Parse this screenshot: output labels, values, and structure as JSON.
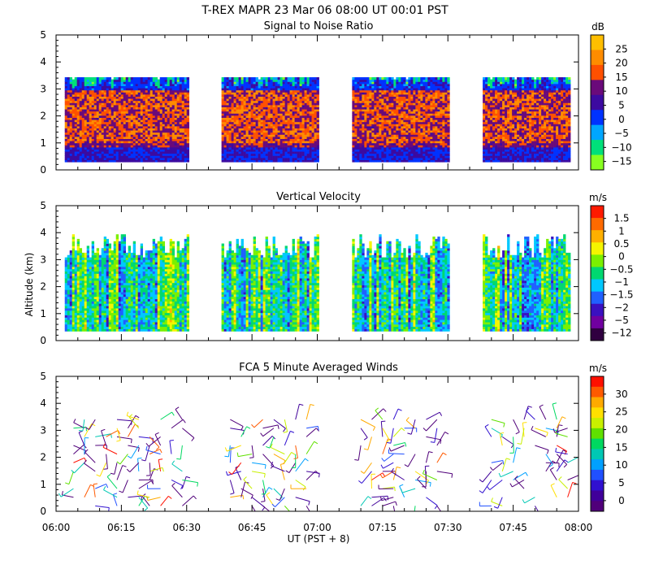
{
  "header": {
    "title": "T-REX   MAPR 23 Mar 06   08:00 UT   00:01   PST"
  },
  "y_axis_label": "Altitude (km)",
  "x_axis_label": "UT  (PST + 8)",
  "x_ticks": [
    "06:00",
    "06:15",
    "06:30",
    "06:45",
    "07:00",
    "07:15",
    "07:30",
    "07:45",
    "08:00"
  ],
  "y_ticks": [
    "0",
    "1",
    "2",
    "3",
    "4",
    "5"
  ],
  "gap_periods_ut": [
    [
      "06:30",
      "06:38"
    ],
    [
      "07:00",
      "07:08"
    ],
    [
      "07:30",
      "07:38"
    ]
  ],
  "chart_data": [
    {
      "type": "heatmap",
      "title": "Signal to Noise Ratio",
      "ylabel": "Altitude (km)",
      "ylim": [
        0,
        5
      ],
      "xlim": [
        "06:00",
        "08:00"
      ],
      "colorbar": {
        "unit": "dB",
        "labels": [
          "25",
          "20",
          "15",
          "10",
          "5",
          "0",
          "−5",
          "−10",
          "−15"
        ],
        "colors": [
          "#FFBE00",
          "#FF8C00",
          "#FF5000",
          "#6A0A7A",
          "#3C0AA0",
          "#0032FF",
          "#00A6FF",
          "#00E07A",
          "#88FF20"
        ]
      }
    },
    {
      "type": "heatmap",
      "title": "Vertical Velocity",
      "ylabel": "Altitude (km)",
      "ylim": [
        0,
        5
      ],
      "xlim": [
        "06:00",
        "08:00"
      ],
      "colorbar": {
        "unit": "m/s",
        "labels": [
          "1.5",
          "1",
          "0.5",
          "0",
          "−0.5",
          "−1",
          "−1.5",
          "−2",
          "−5",
          "−12"
        ],
        "colors": [
          "#FF1A00",
          "#FF6A00",
          "#FFB000",
          "#F5F500",
          "#7AF000",
          "#00D870",
          "#00C8FF",
          "#2060FF",
          "#3A10C0",
          "#7000A0",
          "#300040"
        ]
      }
    },
    {
      "type": "scatter",
      "title": "FCA 5 Minute Averaged Winds",
      "ylabel": "Altitude (km)",
      "ylim": [
        0,
        5
      ],
      "xlim": [
        "06:00",
        "08:00"
      ],
      "colorbar": {
        "unit": "m/s",
        "labels": [
          "30",
          "25",
          "20",
          "15",
          "10",
          "5",
          "0"
        ],
        "colors": [
          "#FF1000",
          "#FF5A00",
          "#FFAA00",
          "#FFE000",
          "#C8F000",
          "#60E000",
          "#00D860",
          "#00C8B4",
          "#00A0FF",
          "#2050FF",
          "#3010D0",
          "#40009A",
          "#50007A"
        ]
      }
    }
  ]
}
